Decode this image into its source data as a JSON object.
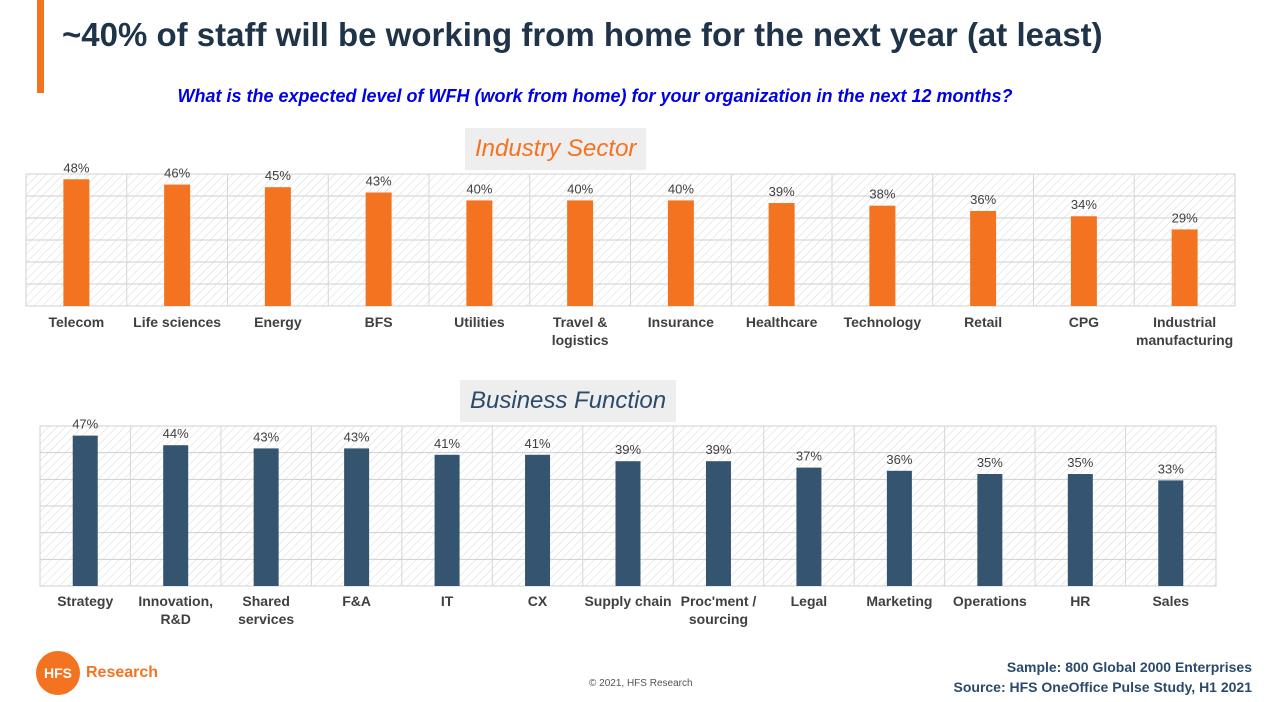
{
  "slide": {
    "title": "~40% of staff will be working from home for the next year (at least)",
    "subtitle": "What is the expected level of WFH (work from home) for your organization in the next 12 months?",
    "logo_initials": "HFS",
    "logo_text": "Research",
    "copyright": "© 2021, HFS Research",
    "sample": "Sample: 800 Global 2000 Enterprises",
    "source": "Source:  HFS OneOffice Pulse Study, H1 2021",
    "colors": {
      "accent": "#f47321",
      "navy": "#34546f",
      "title": "#1f3349",
      "subtitle": "#0000e6"
    }
  },
  "chart_data": [
    {
      "type": "bar",
      "title": "Industry Sector",
      "color": "#f47321",
      "ylim": [
        0,
        50
      ],
      "categories": [
        "Telecom",
        "Life sciences",
        "Energy",
        "BFS",
        "Utilities",
        "Travel & logistics",
        "Insurance",
        "Healthcare",
        "Technology",
        "Retail",
        "CPG",
        "Industrial manufacturing"
      ],
      "category_lines": [
        [
          "Telecom"
        ],
        [
          "Life sciences"
        ],
        [
          "Energy"
        ],
        [
          "BFS"
        ],
        [
          "Utilities"
        ],
        [
          "Travel &",
          "logistics"
        ],
        [
          "Insurance"
        ],
        [
          "Healthcare"
        ],
        [
          "Technology"
        ],
        [
          "Retail"
        ],
        [
          "CPG"
        ],
        [
          "Industrial",
          "manufacturing"
        ]
      ],
      "values": [
        48,
        46,
        45,
        43,
        40,
        40,
        40,
        39,
        38,
        36,
        34,
        29
      ],
      "data_labels": [
        "48%",
        "46%",
        "45%",
        "43%",
        "40%",
        "40%",
        "40%",
        "39%",
        "38%",
        "36%",
        "34%",
        "29%"
      ]
    },
    {
      "type": "bar",
      "title": "Business Function",
      "color": "#34546f",
      "ylim": [
        0,
        50
      ],
      "categories": [
        "Strategy",
        "Innovation, R&D",
        "Shared services",
        "F&A",
        "IT",
        "CX",
        "Supply chain",
        "Proc'ment / sourcing",
        "Legal",
        "Marketing",
        "Operations",
        "HR",
        "Sales"
      ],
      "category_lines": [
        [
          "Strategy"
        ],
        [
          "Innovation,",
          "R&D"
        ],
        [
          "Shared",
          "services"
        ],
        [
          "F&A"
        ],
        [
          "IT"
        ],
        [
          "CX"
        ],
        [
          "Supply chain"
        ],
        [
          "Proc'ment /",
          "sourcing"
        ],
        [
          "Legal"
        ],
        [
          "Marketing"
        ],
        [
          "Operations"
        ],
        [
          "HR"
        ],
        [
          "Sales"
        ]
      ],
      "values": [
        47,
        44,
        43,
        43,
        41,
        41,
        39,
        39,
        37,
        36,
        35,
        35,
        33
      ],
      "data_labels": [
        "47%",
        "44%",
        "43%",
        "43%",
        "41%",
        "41%",
        "39%",
        "39%",
        "37%",
        "36%",
        "35%",
        "35%",
        "33%"
      ]
    }
  ]
}
